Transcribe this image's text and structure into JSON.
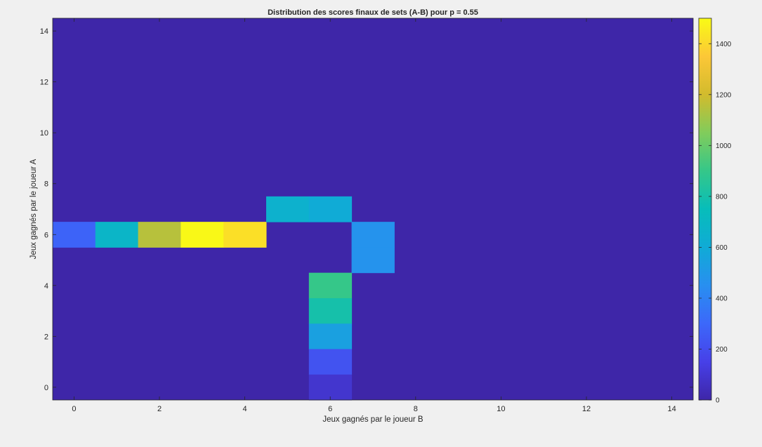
{
  "chart_data": {
    "type": "heatmap",
    "title": "Distribution des scores finaux de sets (A-B) pour p = 0.55",
    "xlabel": "Jeux gagnés par le joueur B",
    "ylabel": "Jeux gagnés par le joueur A",
    "x_range": [
      0,
      14
    ],
    "y_range": [
      0,
      14
    ],
    "xlim": [
      -0.5,
      14.5
    ],
    "ylim": [
      -0.5,
      14.5
    ],
    "x_ticks": [
      0,
      2,
      4,
      6,
      8,
      10,
      12,
      14
    ],
    "y_ticks": [
      0,
      2,
      4,
      6,
      8,
      10,
      12,
      14
    ],
    "y_direction": "normal",
    "grid": false,
    "colormap": "parula",
    "colorbar": {
      "position": "right",
      "limits": [
        0,
        1500
      ],
      "ticks": [
        0,
        200,
        400,
        600,
        800,
        1000,
        1200,
        1400
      ]
    },
    "background_value": 0,
    "cells": [
      {
        "a": 6,
        "b": 0,
        "value": 280
      },
      {
        "a": 6,
        "b": 1,
        "value": 680
      },
      {
        "a": 6,
        "b": 2,
        "value": 1150
      },
      {
        "a": 6,
        "b": 3,
        "value": 1490
      },
      {
        "a": 6,
        "b": 4,
        "value": 1420
      },
      {
        "a": 7,
        "b": 5,
        "value": 650
      },
      {
        "a": 7,
        "b": 6,
        "value": 600
      },
      {
        "a": 5,
        "b": 7,
        "value": 470
      },
      {
        "a": 6,
        "b": 7,
        "value": 470
      },
      {
        "a": 4,
        "b": 6,
        "value": 900
      },
      {
        "a": 3,
        "b": 6,
        "value": 800
      },
      {
        "a": 2,
        "b": 6,
        "value": 540
      },
      {
        "a": 1,
        "b": 6,
        "value": 220
      },
      {
        "a": 0,
        "b": 6,
        "value": 90
      }
    ]
  }
}
